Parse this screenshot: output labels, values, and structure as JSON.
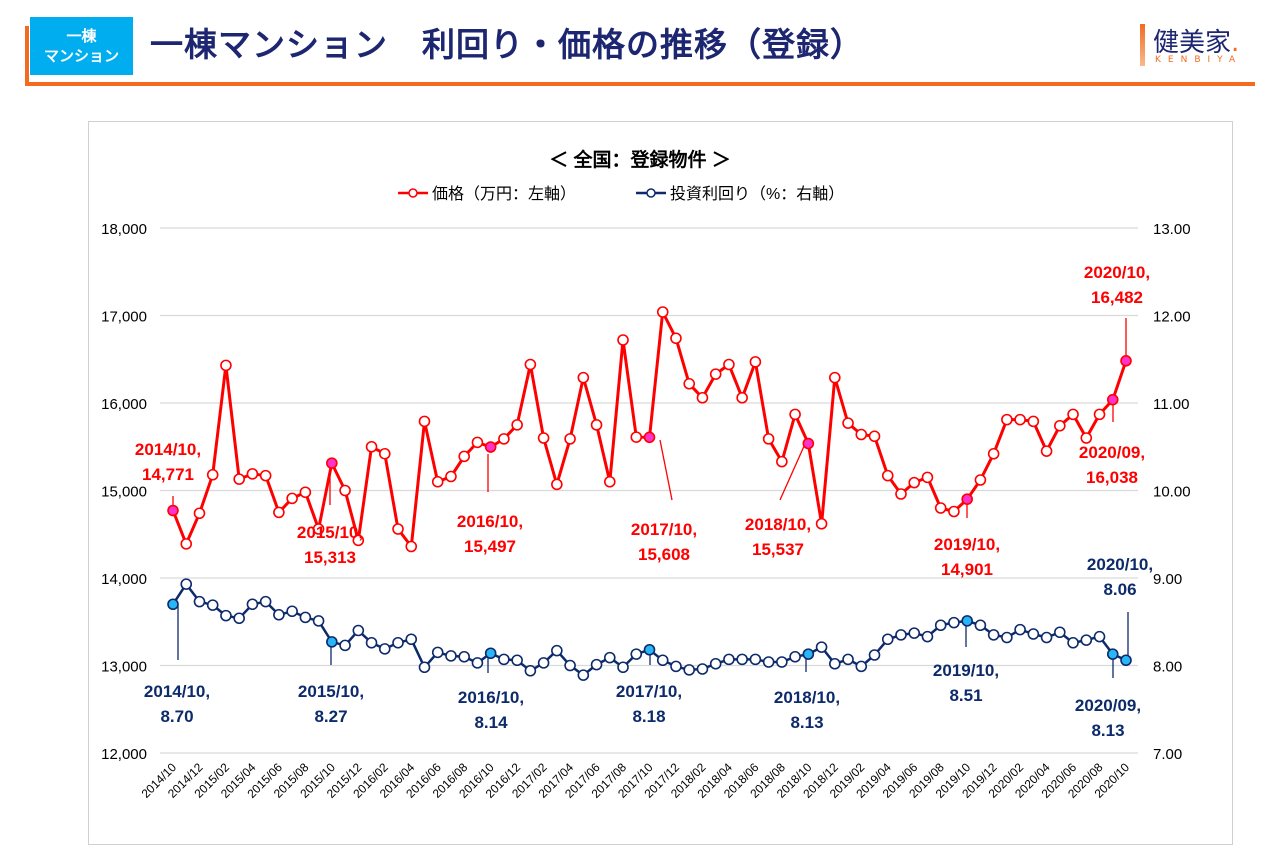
{
  "header": {
    "badge_line1": "一棟",
    "badge_line2": "マンション",
    "title": "一棟マンション　利回り・価格の推移（登録）",
    "logo_main": "健美家",
    "logo_dot": ".",
    "logo_sub": "KENBIYA"
  },
  "colors": {
    "accent": "#f26b21",
    "badge": "#00aeef",
    "title": "#1d2670",
    "price_series": "#ff0000",
    "yield_series": "#0d2a6b",
    "price_highlight": "#ff33cc",
    "yield_highlight": "#29b6f6"
  },
  "chart_data": {
    "type": "line",
    "title": "＜ 全国：登録物件 ＞",
    "legend_position": "top-center",
    "grid": true,
    "xlabel": "",
    "ylabel_left": "価格（万円）",
    "ylabel_right": "投資利回り（%）",
    "ylim_left": [
      12000,
      18000
    ],
    "ylim_right": [
      7.0,
      13.0
    ],
    "yticks_left": [
      "12,000",
      "13,000",
      "14,000",
      "15,000",
      "16,000",
      "17,000",
      "18,000"
    ],
    "yticks_right": [
      "7.00",
      "8.00",
      "9.00",
      "10.00",
      "11.00",
      "12.00",
      "13.00"
    ],
    "x": [
      "2014/10",
      "2014/11",
      "2014/12",
      "2015/01",
      "2015/02",
      "2015/03",
      "2015/04",
      "2015/05",
      "2015/06",
      "2015/07",
      "2015/08",
      "2015/09",
      "2015/10",
      "2015/11",
      "2015/12",
      "2016/01",
      "2016/02",
      "2016/03",
      "2016/04",
      "2016/05",
      "2016/06",
      "2016/07",
      "2016/08",
      "2016/09",
      "2016/10",
      "2016/11",
      "2016/12",
      "2017/01",
      "2017/02",
      "2017/03",
      "2017/04",
      "2017/05",
      "2017/06",
      "2017/07",
      "2017/08",
      "2017/09",
      "2017/10",
      "2017/11",
      "2017/12",
      "2018/01",
      "2018/02",
      "2018/03",
      "2018/04",
      "2018/05",
      "2018/06",
      "2018/07",
      "2018/08",
      "2018/09",
      "2018/10",
      "2018/11",
      "2018/12",
      "2019/01",
      "2019/02",
      "2019/03",
      "2019/04",
      "2019/05",
      "2019/06",
      "2019/07",
      "2019/08",
      "2019/09",
      "2019/10",
      "2019/11",
      "2019/12",
      "2020/01",
      "2020/02",
      "2020/03",
      "2020/04",
      "2020/05",
      "2020/06",
      "2020/07",
      "2020/08",
      "2020/09",
      "2020/10"
    ],
    "xtick_labels": [
      "2014/10",
      "2014/12",
      "2015/02",
      "2015/04",
      "2015/06",
      "2015/08",
      "2015/10",
      "2015/12",
      "2016/02",
      "2016/04",
      "2016/06",
      "2016/08",
      "2016/10",
      "2016/12",
      "2017/02",
      "2017/04",
      "2017/06",
      "2017/08",
      "2017/10",
      "2017/12",
      "2018/02",
      "2018/04",
      "2018/06",
      "2018/08",
      "2018/10",
      "2018/12",
      "2019/02",
      "2019/04",
      "2019/06",
      "2019/08",
      "2019/10",
      "2019/12",
      "2020/02",
      "2020/04",
      "2020/06",
      "2020/08",
      "2020/10"
    ],
    "series": [
      {
        "name": "価格（万円：左軸）",
        "axis": "left",
        "values": [
          14771,
          14390,
          14740,
          15180,
          16430,
          15130,
          15190,
          15170,
          14750,
          14910,
          14980,
          14560,
          15313,
          15000,
          14430,
          15500,
          15420,
          14560,
          14360,
          15790,
          15100,
          15160,
          15390,
          15550,
          15497,
          15590,
          15750,
          16440,
          15600,
          15070,
          15590,
          16290,
          15750,
          15100,
          16720,
          15610,
          15608,
          17040,
          16740,
          16220,
          16060,
          16330,
          16440,
          16060,
          16470,
          15590,
          15330,
          15870,
          15537,
          14620,
          16290,
          15770,
          15640,
          15620,
          15170,
          14960,
          15090,
          15150,
          14800,
          14760,
          14901,
          15120,
          15420,
          15810,
          15810,
          15790,
          15450,
          15740,
          15870,
          15600,
          15870,
          16038,
          16482
        ]
      },
      {
        "name": "投資利回り（%：右軸）",
        "axis": "right",
        "values": [
          8.7,
          8.93,
          8.73,
          8.69,
          8.57,
          8.54,
          8.7,
          8.73,
          8.58,
          8.62,
          8.55,
          8.51,
          8.27,
          8.23,
          8.4,
          8.26,
          8.19,
          8.26,
          8.3,
          7.98,
          8.15,
          8.11,
          8.1,
          8.03,
          8.14,
          8.07,
          8.06,
          7.94,
          8.03,
          8.17,
          8.0,
          7.89,
          8.01,
          8.09,
          7.98,
          8.13,
          8.18,
          8.06,
          7.99,
          7.95,
          7.96,
          8.02,
          8.07,
          8.07,
          8.07,
          8.04,
          8.04,
          8.1,
          8.13,
          8.21,
          8.02,
          8.07,
          7.99,
          8.12,
          8.3,
          8.35,
          8.37,
          8.33,
          8.46,
          8.49,
          8.51,
          8.46,
          8.35,
          8.32,
          8.41,
          8.36,
          8.32,
          8.38,
          8.26,
          8.29,
          8.33,
          8.13,
          8.06
        ]
      }
    ],
    "annotations": [
      {
        "series": 0,
        "x": "2014/10",
        "line1": "2014/10,",
        "line2": "14,771"
      },
      {
        "series": 0,
        "x": "2015/10",
        "line1": "2015/10,",
        "line2": "15,313"
      },
      {
        "series": 0,
        "x": "2016/10",
        "line1": "2016/10,",
        "line2": "15,497"
      },
      {
        "series": 0,
        "x": "2017/10",
        "line1": "2017/10,",
        "line2": "15,608"
      },
      {
        "series": 0,
        "x": "2018/10",
        "line1": "2018/10,",
        "line2": "15,537"
      },
      {
        "series": 0,
        "x": "2019/10",
        "line1": "2019/10,",
        "line2": "14,901"
      },
      {
        "series": 0,
        "x": "2020/09",
        "line1": "2020/09,",
        "line2": "16,038"
      },
      {
        "series": 0,
        "x": "2020/10",
        "line1": "2020/10,",
        "line2": "16,482"
      },
      {
        "series": 1,
        "x": "2014/10",
        "line1": "2014/10,",
        "line2": "8.70"
      },
      {
        "series": 1,
        "x": "2015/10",
        "line1": "2015/10,",
        "line2": "8.27"
      },
      {
        "series": 1,
        "x": "2016/10",
        "line1": "2016/10,",
        "line2": "8.14"
      },
      {
        "series": 1,
        "x": "2017/10",
        "line1": "2017/10,",
        "line2": "8.18"
      },
      {
        "series": 1,
        "x": "2018/10",
        "line1": "2018/10,",
        "line2": "8.13"
      },
      {
        "series": 1,
        "x": "2019/10",
        "line1": "2019/10,",
        "line2": "8.51"
      },
      {
        "series": 1,
        "x": "2020/09",
        "line1": "2020/09,",
        "line2": "8.13"
      },
      {
        "series": 1,
        "x": "2020/10",
        "line1": "2020/10,",
        "line2": "8.06"
      }
    ]
  }
}
